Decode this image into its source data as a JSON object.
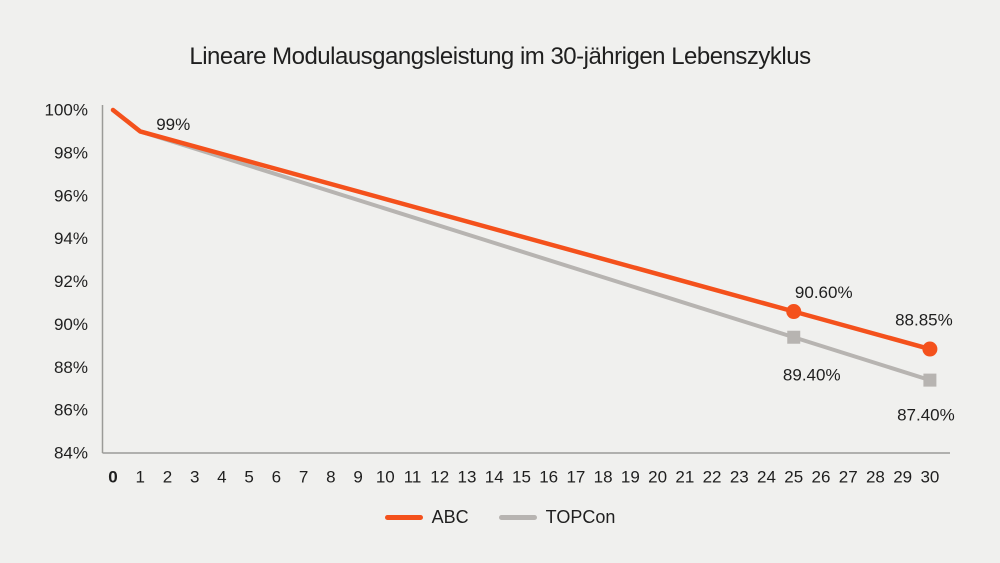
{
  "page": {
    "background_color": "#F0F0EE"
  },
  "chart_data": {
    "type": "line",
    "title": "Lineare Modulausgangsleistung im 30-jährigen Lebenszyklus",
    "xlabel": "",
    "ylabel": "",
    "xlim": [
      0,
      30
    ],
    "ylim": [
      84,
      100
    ],
    "grid": false,
    "legend_position": "bottom",
    "colors": {
      "axis": "#9B9B98",
      "text": "#1F1F1F",
      "abc_orange": "#F4511C",
      "topcon_gray": "#B7B4B1",
      "background": "#F0F0EE"
    },
    "y_ticks": [
      "100%",
      "98%",
      "96%",
      "94%",
      "92%",
      "90%",
      "88%",
      "86%",
      "84%"
    ],
    "x_ticks": [
      "0",
      "1",
      "2",
      "3",
      "4",
      "5",
      "6",
      "7",
      "8",
      "9",
      "10",
      "11",
      "12",
      "13",
      "14",
      "15",
      "16",
      "17",
      "18",
      "19",
      "20",
      "21",
      "22",
      "23",
      "24",
      "25",
      "26",
      "27",
      "28",
      "29",
      "30"
    ],
    "bold_x_tick": "0",
    "series": [
      {
        "name": "ABC",
        "color": "#F4511C",
        "marker": "circle",
        "line_width": 4.5,
        "points": [
          {
            "x": 0,
            "y": 100
          },
          {
            "x": 1,
            "y": 99,
            "label": "99%",
            "label_dx": 33,
            "label_dy": -7
          },
          {
            "x": 25,
            "y": 90.6,
            "label": "90.60%",
            "label_dx": 30,
            "label_dy": -19,
            "marker": true
          },
          {
            "x": 30,
            "y": 88.85,
            "label": "88.85%",
            "label_dx": -6,
            "label_dy": -29,
            "marker": true
          }
        ]
      },
      {
        "name": "TOPCon",
        "color": "#B7B4B1",
        "marker": "square",
        "line_width": 4,
        "points": [
          {
            "x": 0,
            "y": 100
          },
          {
            "x": 1,
            "y": 99
          },
          {
            "x": 25,
            "y": 89.4,
            "label": "89.40%",
            "label_dx": 18,
            "label_dy": 38,
            "marker": true
          },
          {
            "x": 30,
            "y": 87.4,
            "label": "87.40%",
            "label_dx": -4,
            "label_dy": 35,
            "marker": true
          }
        ]
      }
    ]
  }
}
